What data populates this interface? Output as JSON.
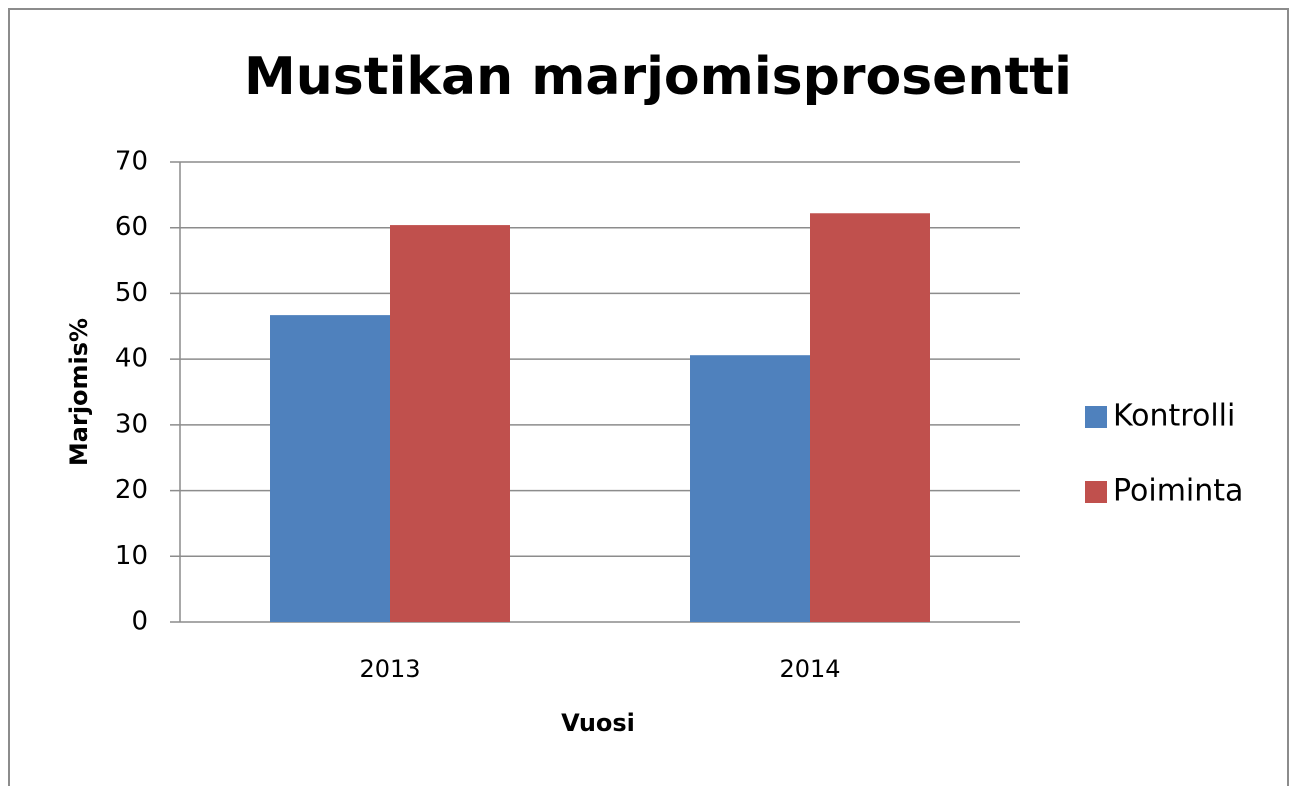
{
  "chart_data": {
    "type": "bar",
    "title": "Mustikan marjomisprosentti",
    "x_label": "Vuosi",
    "y_label": "Marjomis%",
    "categories": [
      "2013",
      "2014"
    ],
    "series": [
      {
        "name": "Kontrolli",
        "color": "#4f81bd",
        "values": [
          46.7,
          40.6
        ]
      },
      {
        "name": "Poiminta",
        "color": "#c0504d",
        "values": [
          60.4,
          62.2
        ]
      }
    ],
    "ylim": [
      0,
      70
    ],
    "yticks": [
      0,
      10,
      20,
      30,
      40,
      50,
      60,
      70
    ],
    "grid": true,
    "legend": "right"
  }
}
